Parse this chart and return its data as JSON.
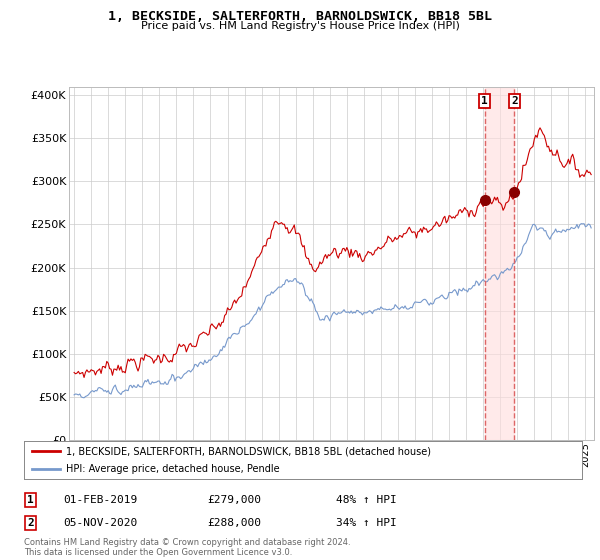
{
  "title": "1, BECKSIDE, SALTERFORTH, BARNOLDSWICK, BB18 5BL",
  "subtitle": "Price paid vs. HM Land Registry's House Price Index (HPI)",
  "ylabel_ticks": [
    "£0",
    "£50K",
    "£100K",
    "£150K",
    "£200K",
    "£250K",
    "£300K",
    "£350K",
    "£400K"
  ],
  "ytick_vals": [
    0,
    50000,
    100000,
    150000,
    200000,
    250000,
    300000,
    350000,
    400000
  ],
  "ylim": [
    0,
    410000
  ],
  "xlim_start": 1994.7,
  "xlim_end": 2025.5,
  "red_line_color": "#cc0000",
  "blue_line_color": "#7799cc",
  "transaction1_x": 2019.083,
  "transaction1_y": 279000,
  "transaction2_x": 2020.833,
  "transaction2_y": 288000,
  "vline_color": "#dd6666",
  "shade_color": "#ffdddd",
  "legend_label_red": "1, BECKSIDE, SALTERFORTH, BARNOLDSWICK, BB18 5BL (detached house)",
  "legend_label_blue": "HPI: Average price, detached house, Pendle",
  "table_row1": [
    "1",
    "01-FEB-2019",
    "£279,000",
    "48% ↑ HPI"
  ],
  "table_row2": [
    "2",
    "05-NOV-2020",
    "£288,000",
    "34% ↑ HPI"
  ],
  "footnote": "Contains HM Land Registry data © Crown copyright and database right 2024.\nThis data is licensed under the Open Government Licence v3.0.",
  "background_color": "#ffffff",
  "plot_bg_color": "#ffffff",
  "grid_color": "#cccccc"
}
